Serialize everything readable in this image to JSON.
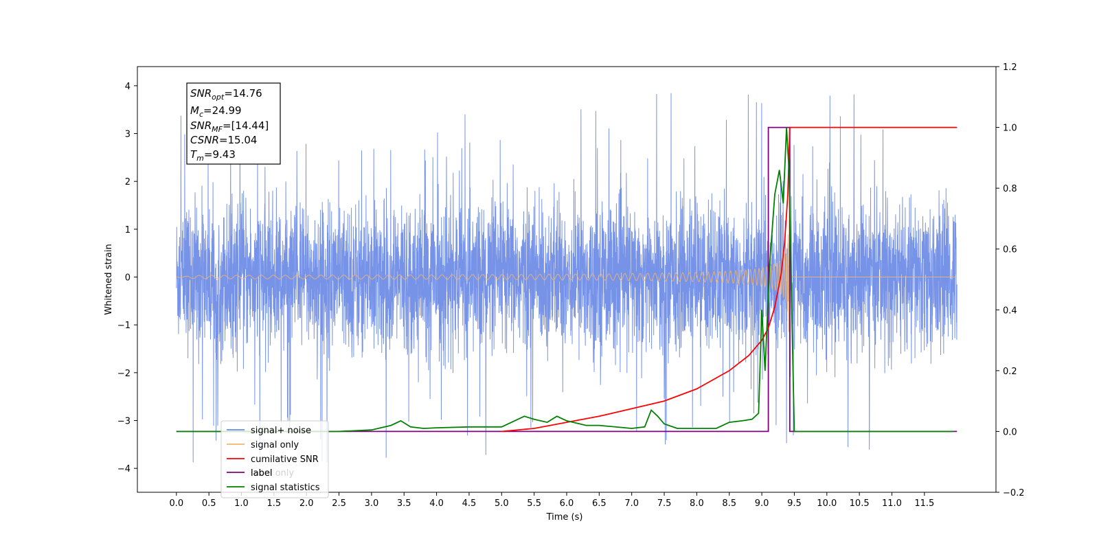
{
  "chart_data": {
    "type": "line",
    "xlabel": "Time (s)",
    "ylabel_left": "Whitened strain",
    "ylabel_right": "",
    "xlim": [
      -0.6,
      12.6
    ],
    "ylim_left": [
      -4.5,
      4.4
    ],
    "ylim_right": [
      -0.2,
      1.2
    ],
    "x_ticks": [
      "0.0",
      "0.5",
      "1.0",
      "1.5",
      "2.0",
      "2.5",
      "3.0",
      "3.5",
      "4.0",
      "4.5",
      "5.0",
      "5.5",
      "6.0",
      "6.5",
      "7.0",
      "7.5",
      "8.0",
      "8.5",
      "9.0",
      "9.5",
      "10.0",
      "10.5",
      "11.0",
      "11.5"
    ],
    "y_ticks_left": [
      "4",
      "3",
      "2",
      "1",
      "0",
      "−1",
      "−2",
      "−3",
      "−4"
    ],
    "y_ticks_right": [
      "1.2",
      "1.0",
      "0.8",
      "0.6",
      "0.4",
      "0.2",
      "0.0",
      "−0.2"
    ],
    "grid": false,
    "legend_position": "lower-left",
    "info_box": {
      "lines": [
        {
          "base": "SNR",
          "sub": "opt",
          "value": "=14.76"
        },
        {
          "base": "M",
          "sub": "c",
          "value": "=24.99"
        },
        {
          "base": "SNR",
          "sub": "MF",
          "value": "=[14.44]"
        },
        {
          "base": "CSNR",
          "sub": "",
          "value": "=15.04"
        },
        {
          "base": "T",
          "sub": "m",
          "value": "=9.43"
        }
      ]
    },
    "series": [
      {
        "name": "signal+ noise",
        "color": "#6b8ae6",
        "axis": "left",
        "description": "noise band roughly between -1.5 and 1.5 with spikes up to about 4.0 and down to about -4.1, from 0.0 s to 12.0 s"
      },
      {
        "name": "signal only",
        "color": "#f5b56a",
        "axis": "left",
        "description": "chirp with growing amplitude, peak near 9.4 s, flat 0 otherwise"
      },
      {
        "name": "cumilative SNR",
        "color": "#ff0000",
        "axis": "right",
        "x": [
          5.0,
          5.5,
          6.0,
          6.5,
          7.0,
          7.5,
          8.0,
          8.5,
          8.8,
          9.0,
          9.1,
          9.2,
          9.3,
          9.35,
          9.4,
          9.43,
          12.0
        ],
        "y": [
          0.0,
          0.01,
          0.03,
          0.05,
          0.075,
          0.1,
          0.14,
          0.2,
          0.25,
          0.3,
          0.34,
          0.41,
          0.52,
          0.62,
          0.78,
          1.0,
          1.0
        ]
      },
      {
        "name": "label",
        "color": "#800080",
        "axis": "right",
        "x": [
          0.0,
          9.1,
          9.1,
          9.43,
          9.43,
          12.0
        ],
        "y": [
          0.0,
          0.0,
          1.0,
          1.0,
          0.0,
          0.0
        ]
      },
      {
        "name": "label only",
        "color": "#d0d0d0",
        "axis": "right"
      },
      {
        "name": "signal statistics",
        "color": "#008000",
        "axis": "right",
        "x": [
          0.0,
          2.5,
          3.0,
          3.3,
          3.45,
          3.6,
          3.8,
          4.0,
          4.5,
          5.0,
          5.2,
          5.35,
          5.5,
          5.7,
          5.85,
          6.0,
          6.3,
          6.5,
          7.0,
          7.2,
          7.3,
          7.4,
          7.5,
          7.7,
          8.0,
          8.3,
          8.5,
          8.7,
          8.85,
          8.95,
          9.0,
          9.05,
          9.12,
          9.2,
          9.27,
          9.33,
          9.38,
          9.42,
          9.46,
          9.5,
          9.54,
          11.95
        ],
        "y": [
          0.0,
          0.0,
          0.005,
          0.02,
          0.035,
          0.015,
          0.01,
          0.012,
          0.015,
          0.015,
          0.035,
          0.05,
          0.04,
          0.03,
          0.05,
          0.035,
          0.02,
          0.02,
          0.01,
          0.015,
          0.07,
          0.05,
          0.025,
          0.01,
          0.01,
          0.01,
          0.03,
          0.035,
          0.04,
          0.06,
          0.4,
          0.2,
          0.55,
          0.78,
          0.86,
          0.75,
          1.0,
          0.85,
          0.4,
          0.0,
          0.0,
          0.0
        ]
      }
    ]
  }
}
